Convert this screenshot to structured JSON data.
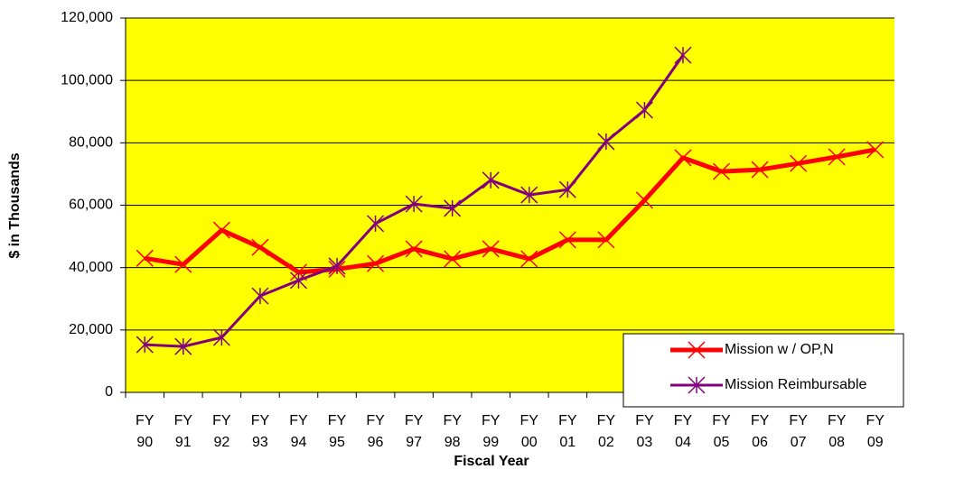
{
  "chart_data": {
    "type": "line",
    "ylabel": "$ in Thousands",
    "xlabel": "Fiscal Year",
    "categories": [
      "FY 90",
      "FY 91",
      "FY 92",
      "FY 93",
      "FY 94",
      "FY 95",
      "FY 96",
      "FY 97",
      "FY 98",
      "FY 99",
      "FY 00",
      "FY 01",
      "FY 02",
      "FY 03",
      "FY 04",
      "FY 05",
      "FY 06",
      "FY 07",
      "FY 08",
      "FY 09"
    ],
    "series": [
      {
        "name": "Mission w / OP,N",
        "color": "#ff0000",
        "marker": "x",
        "width": 5,
        "values": [
          43000,
          41000,
          52000,
          46500,
          38500,
          39500,
          41300,
          46000,
          42800,
          46000,
          42800,
          48900,
          48900,
          61600,
          75200,
          70800,
          71400,
          73400,
          75500,
          77800
        ]
      },
      {
        "name": "Mission Reimbursable",
        "color": "#800080",
        "marker": "asterisk",
        "width": 3,
        "values": [
          15300,
          14700,
          17600,
          30900,
          35900,
          40500,
          54100,
          60400,
          59000,
          68000,
          63300,
          65000,
          80400,
          90500,
          108100,
          null,
          null,
          null,
          null,
          null
        ]
      }
    ],
    "ylim": [
      0,
      120000
    ],
    "yticks": [
      0,
      {
        "value": 20000,
        "label": "20,000"
      },
      {
        "value": 40000,
        "label": "40,000"
      },
      {
        "value": 60000,
        "label": "60,000"
      },
      {
        "value": 80000,
        "label": "80,000"
      },
      {
        "value": 100000,
        "label": "100,000"
      },
      {
        "value": 120000,
        "label": "120,000"
      }
    ],
    "grid": true,
    "background": "#ffff00",
    "legend": "lower right"
  }
}
